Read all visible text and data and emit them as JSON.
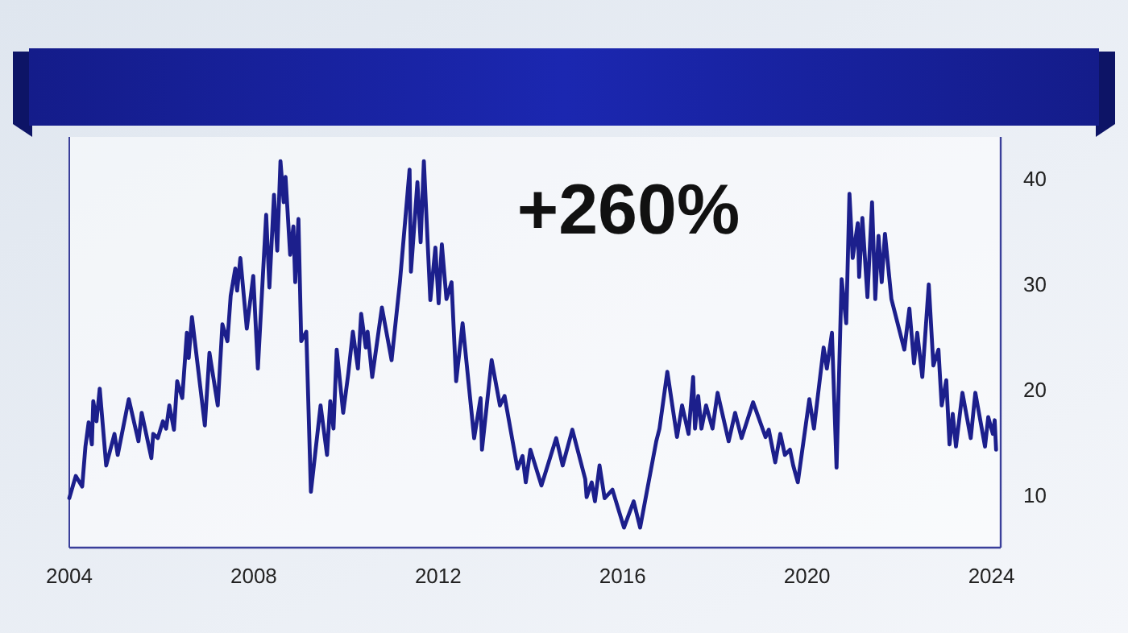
{
  "chart_data": {
    "type": "line",
    "annotations": [
      "+260%"
    ],
    "xlim": [
      2004,
      2024.2
    ],
    "xticks": [
      2004,
      2008,
      2012,
      2016,
      2020,
      2024
    ],
    "ylim": [
      5,
      44
    ],
    "yticks": [
      10,
      20,
      30,
      40
    ],
    "series": [
      {
        "color": "#1c1f8c",
        "x": [
          2004.0,
          2004.14,
          2004.28,
          2004.35,
          2004.42,
          2004.49,
          2004.52,
          2004.59,
          2004.66,
          2004.8,
          2004.98,
          2005.05,
          2005.29,
          2005.5,
          2005.57,
          2005.78,
          2005.82,
          2005.92,
          2006.03,
          2006.1,
          2006.17,
          2006.27,
          2006.34,
          2006.45,
          2006.55,
          2006.59,
          2006.66,
          2006.94,
          2007.04,
          2007.22,
          2007.32,
          2007.43,
          2007.5,
          2007.6,
          2007.64,
          2007.71,
          2007.85,
          2007.99,
          2008.09,
          2008.27,
          2008.34,
          2008.44,
          2008.51,
          2008.58,
          2008.65,
          2008.69,
          2008.79,
          2008.86,
          2008.9,
          2008.97,
          2009.03,
          2009.14,
          2009.24,
          2009.45,
          2009.59,
          2009.66,
          2009.73,
          2009.8,
          2009.94,
          2010.05,
          2010.15,
          2010.26,
          2010.33,
          2010.43,
          2010.47,
          2010.57,
          2010.78,
          2010.99,
          2011.17,
          2011.38,
          2011.41,
          2011.55,
          2011.62,
          2011.69,
          2011.83,
          2011.94,
          2012.01,
          2012.08,
          2012.18,
          2012.29,
          2012.39,
          2012.53,
          2012.78,
          2012.92,
          2012.95,
          2013.16,
          2013.34,
          2013.44,
          2013.72,
          2013.83,
          2013.9,
          2014.0,
          2014.24,
          2014.56,
          2014.7,
          2014.91,
          2015.19,
          2015.22,
          2015.33,
          2015.4,
          2015.5,
          2015.61,
          2015.78,
          2016.03,
          2016.24,
          2016.38,
          2016.73,
          2016.8,
          2016.97,
          2017.18,
          2017.29,
          2017.43,
          2017.53,
          2017.57,
          2017.64,
          2017.71,
          2017.81,
          2017.95,
          2018.06,
          2018.3,
          2018.44,
          2018.58,
          2018.83,
          2019.1,
          2019.17,
          2019.31,
          2019.42,
          2019.52,
          2019.63,
          2019.7,
          2019.8,
          2020.05,
          2020.15,
          2020.36,
          2020.43,
          2020.54,
          2020.64,
          2020.75,
          2020.85,
          2020.92,
          2020.99,
          2021.1,
          2021.13,
          2021.2,
          2021.31,
          2021.41,
          2021.48,
          2021.55,
          2021.62,
          2021.69,
          2021.83,
          2022.11,
          2022.22,
          2022.32,
          2022.39,
          2022.5,
          2022.64,
          2022.74,
          2022.85,
          2022.92,
          2023.02,
          2023.09,
          2023.16,
          2023.23,
          2023.37,
          2023.55,
          2023.65,
          2023.86,
          2023.93,
          2024.03,
          2024.07,
          2024.1
        ],
        "values": [
          9.7,
          11.8,
          10.8,
          14.6,
          16.9,
          14.8,
          18.9,
          17,
          20.1,
          12.8,
          15.8,
          13.8,
          19.1,
          15.1,
          17.8,
          13.5,
          15.8,
          15.4,
          17,
          16.3,
          18.5,
          16.2,
          20.8,
          19.2,
          25.4,
          23,
          26.9,
          16.6,
          23.5,
          18.5,
          26.2,
          24.6,
          28.9,
          31.5,
          29.4,
          32.5,
          25.8,
          30.8,
          22,
          36.6,
          29.7,
          38.5,
          33.2,
          41.7,
          37.8,
          40.2,
          32.8,
          35.5,
          30.2,
          36.2,
          24.6,
          25.5,
          10.3,
          18.5,
          13.8,
          18.9,
          16.3,
          23.8,
          17.8,
          21.5,
          25.5,
          22,
          27.2,
          24,
          25.5,
          21.2,
          27.8,
          22.8,
          30.2,
          40.9,
          31.2,
          39.7,
          34,
          41.7,
          28.5,
          33.5,
          28.2,
          33.8,
          28.6,
          30.2,
          20.8,
          26.3,
          15.4,
          19.2,
          14.3,
          22.8,
          18.5,
          19.4,
          12.5,
          13.7,
          11.2,
          14.3,
          10.9,
          15.4,
          12.8,
          16.2,
          11.5,
          9.8,
          11.2,
          9.4,
          12.8,
          9.7,
          10.5,
          6.9,
          9.4,
          6.9,
          15.1,
          16.3,
          21.7,
          15.5,
          18.5,
          15.8,
          21.2,
          16.3,
          19.4,
          16.3,
          18.5,
          16.3,
          19.7,
          15.1,
          17.8,
          15.4,
          18.8,
          15.5,
          16.2,
          13.1,
          15.8,
          13.8,
          14.3,
          12.8,
          11.2,
          19.1,
          16.3,
          24,
          22,
          25.4,
          12.6,
          30.5,
          26.3,
          38.6,
          32.5,
          35.8,
          30.7,
          36.3,
          28.8,
          37.8,
          28.6,
          34.6,
          30.2,
          34.8,
          28.6,
          23.8,
          27.7,
          22.5,
          25.4,
          21.2,
          30,
          22.3,
          23.8,
          18.5,
          20.9,
          14.8,
          17.7,
          14.6,
          19.7,
          15.4,
          19.7,
          14.6,
          17.4,
          15.8,
          17.1,
          14.3
        ]
      }
    ]
  }
}
